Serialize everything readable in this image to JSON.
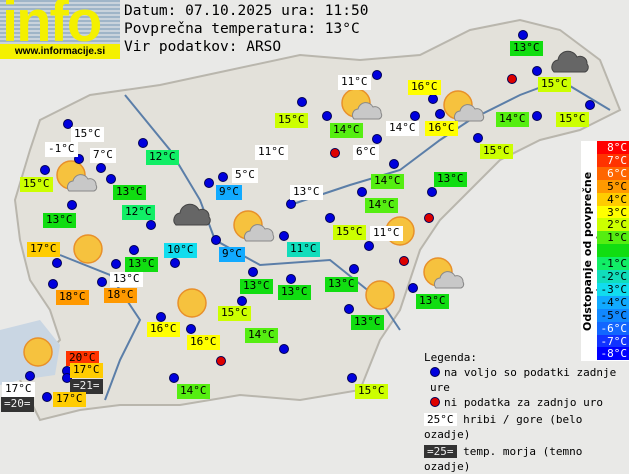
{
  "logo": {
    "word": "info",
    "url": "www.informacije.si"
  },
  "header": {
    "date_line": "Datum: 07.10.2025 ura: 11:50",
    "avg_line": "Povprečna temperatura: 13°C",
    "source_line": "Vir podatkov: ARSO"
  },
  "average_temperature": 13,
  "stations": [
    {
      "text": "13°C",
      "t": 13
    },
    {
      "text": "11°C",
      "t": 11,
      "kind": "mountain"
    },
    {
      "text": "16°C",
      "t": 16
    },
    {
      "text": "15°C",
      "t": 15
    },
    {
      "text": "15°C",
      "t": 15
    },
    {
      "text": "14°C",
      "t": 14
    },
    {
      "text": "14°C",
      "t": 14,
      "kind": "mountain"
    },
    {
      "text": "16°C",
      "t": 16
    },
    {
      "text": "14°C",
      "t": 14
    },
    {
      "text": "15°C",
      "t": 15
    },
    {
      "text": "15°C",
      "t": 15,
      "kind": "mountain"
    },
    {
      "text": "-1°C",
      "t": -1,
      "kind": "mountain"
    },
    {
      "text": "7°C",
      "t": 7,
      "kind": "mountain"
    },
    {
      "text": "12°C",
      "t": 12
    },
    {
      "text": "11°C",
      "t": 11,
      "kind": "mountain"
    },
    {
      "text": "6°C",
      "t": 6,
      "kind": "mountain"
    },
    {
      "text": "15°C",
      "t": 15
    },
    {
      "text": "15°C",
      "t": 15
    },
    {
      "text": "5°C",
      "t": 5,
      "kind": "mountain"
    },
    {
      "text": "13°C",
      "t": 13
    },
    {
      "text": "9°C",
      "t": 9
    },
    {
      "text": "13°C",
      "t": 13,
      "kind": "mountain"
    },
    {
      "text": "14°C",
      "t": 14
    },
    {
      "text": "13°C",
      "t": 13
    },
    {
      "text": "12°C",
      "t": 12
    },
    {
      "text": "14°C",
      "t": 14
    },
    {
      "text": "13°C",
      "t": 13
    },
    {
      "text": "15°C",
      "t": 15
    },
    {
      "text": "11°C",
      "t": 11,
      "kind": "mountain"
    },
    {
      "text": "17°C",
      "t": 17
    },
    {
      "text": "10°C",
      "t": 10
    },
    {
      "text": "9°C",
      "t": 9
    },
    {
      "text": "11°C",
      "t": 11
    },
    {
      "text": "13°C",
      "t": 13
    },
    {
      "text": "13°C",
      "t": 13,
      "kind": "mountain"
    },
    {
      "text": "18°C",
      "t": 18
    },
    {
      "text": "18°C",
      "t": 18
    },
    {
      "text": "13°C",
      "t": 13
    },
    {
      "text": "13°C",
      "t": 13
    },
    {
      "text": "13°C",
      "t": 13
    },
    {
      "text": "13°C",
      "t": 13
    },
    {
      "text": "15°C",
      "t": 15
    },
    {
      "text": "13°C",
      "t": 13
    },
    {
      "text": "16°C",
      "t": 16
    },
    {
      "text": "16°C",
      "t": 16
    },
    {
      "text": "14°C",
      "t": 14
    },
    {
      "text": "20°C",
      "t": 20
    },
    {
      "text": "17°C",
      "t": 17
    },
    {
      "text": "17°C",
      "t": 17,
      "kind": "mountain"
    },
    {
      "text": "=20=",
      "kind": "sea"
    },
    {
      "text": "=21=",
      "kind": "sea"
    },
    {
      "text": "17°C",
      "t": 17
    },
    {
      "text": "14°C",
      "t": 14
    },
    {
      "text": "15°C",
      "t": 15
    }
  ],
  "weather_icons": [
    "sun-cloud",
    "sun",
    "cloud",
    "sun-cloud",
    "sun-cloud",
    "sun-cloud",
    "cloud",
    "sun",
    "sun-cloud",
    "sun",
    "sun",
    "sun"
  ],
  "scale": {
    "title": "Odstopanje od povprečne temperature:",
    "rows": [
      {
        "label": "8°C",
        "color": "#ff0000"
      },
      {
        "label": "7°C",
        "color": "#ff3300"
      },
      {
        "label": "6°C",
        "color": "#ff6600"
      },
      {
        "label": "5°C",
        "color": "#ff9900"
      },
      {
        "label": "4°C",
        "color": "#ffcc00"
      },
      {
        "label": "3°C",
        "color": "#ffff00"
      },
      {
        "label": "2°C",
        "color": "#ccff00"
      },
      {
        "label": "1°C",
        "color": "#55ee11"
      },
      {
        "label": "",
        "color": "#11dd11"
      },
      {
        "label": "-1°C",
        "color": "#11ee66"
      },
      {
        "label": "-2°C",
        "color": "#11ddbb"
      },
      {
        "label": "-3°C",
        "color": "#11ddee"
      },
      {
        "label": "-4°C",
        "color": "#11aaff"
      },
      {
        "label": "-5°C",
        "color": "#1188ff"
      },
      {
        "label": "-6°C",
        "color": "#1166ff"
      },
      {
        "label": "-7°C",
        "color": "#1133ff"
      },
      {
        "label": "-8°C",
        "color": "#0000ff"
      }
    ]
  },
  "legend": {
    "title": "Legenda:",
    "blue": "na voljo so podatki zadnje ure",
    "red": "ni podatka za zadnjo uro",
    "mountain_sample": "25°C",
    "mountain_text": "hribi / gore (belo ozadje)",
    "sea_sample": "=25=",
    "sea_text": "temp. morja (temno ozadje)"
  },
  "colors": {
    "dot_ok": "#0000dd",
    "dot_missing": "#dd0000",
    "mountain_bg": "#ffffff"
  }
}
